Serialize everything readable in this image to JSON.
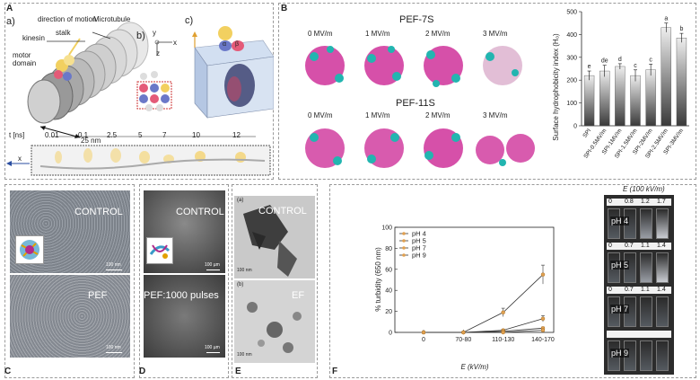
{
  "panel_labels": {
    "a_main": "A",
    "b_main": "B",
    "c_main": "C",
    "d_main": "D",
    "e_main": "E",
    "f_main": "F"
  },
  "panel_a": {
    "sub_a": "a)",
    "sub_b": "b)",
    "sub_c": "c)",
    "direction_label": "direction of motion",
    "microtubule_label": "Microtubule",
    "stalk_label": "stalk",
    "kinesin_label": "kinesin",
    "motor_label": "motor",
    "domain_label": "domain",
    "size_label": "25 nm",
    "axis_y": "y",
    "axis_x": "x",
    "axis_z": "z",
    "alpha": "α",
    "beta": "β",
    "time_axis_label": "t [ns]",
    "times": [
      "0.01",
      "0.1",
      "2.5",
      "5",
      "7",
      "10",
      "12"
    ],
    "x_arrow_label": "x"
  },
  "panel_b": {
    "title_7s": "PEF-7S",
    "title_11s": "PEF-11S",
    "fields_7s": [
      "0 MV/m",
      "1 MV/m",
      "2 MV/m",
      "3 MV/m"
    ],
    "fields_11s": [
      "0 MV/m",
      "1 MV/m",
      "2 MV/m",
      "3 MV/m"
    ]
  },
  "panel_c": {
    "top_label": "CONTROL",
    "bottom_label": "PEF",
    "scale_top": "100 nm",
    "scale_bottom": "100 nm"
  },
  "panel_d": {
    "top_label": "CONTROL",
    "bottom_label": "PEF:1000 pulses",
    "scale_top": "100 µm",
    "scale_bottom": "100 µm"
  },
  "panel_e": {
    "top_tag": "(a)",
    "bottom_tag": "(b)",
    "top_label": "CONTROL",
    "bottom_label": "EF",
    "scale_top": "100 nm",
    "scale_bottom": "100 nm"
  },
  "panel_f_photo": {
    "header": "E (100 kV/m)",
    "rows": [
      {
        "ph": "pH 4",
        "values": [
          "0",
          "0.8",
          "1.2",
          "1.7"
        ]
      },
      {
        "ph": "pH 5",
        "values": [
          "0",
          "0.7",
          "1.1",
          "1.4"
        ]
      },
      {
        "ph": "pH 7",
        "values": [
          "0",
          "0.7",
          "1.1",
          "1.4"
        ]
      },
      {
        "ph": "pH 9",
        "values": []
      }
    ]
  },
  "chart_data": [
    {
      "type": "bar",
      "title": "",
      "ylabel": "Surface hydrophobicity index (H₀)",
      "xlabel": "",
      "ylim": [
        0,
        500
      ],
      "yticks": [
        "0",
        "100",
        "200",
        "300",
        "400",
        "500"
      ],
      "categories": [
        "SPI",
        "SPI-0.5MV/m",
        "SPI-1MV/m",
        "SPI-1.5MV/m",
        "SPI-2MV/m",
        "SPI-2.5MV/m",
        "SPI-3MV/m"
      ],
      "values": [
        220,
        240,
        260,
        220,
        245,
        430,
        385
      ],
      "errors": [
        20,
        25,
        12,
        25,
        25,
        20,
        20
      ],
      "letters": [
        "e",
        "de",
        "d",
        "c",
        "c",
        "a",
        "b"
      ]
    },
    {
      "type": "line",
      "title": "",
      "ylabel": "% turbidity (650 nm)",
      "xlabel": "E (kV/m)",
      "ylim": [
        0,
        100
      ],
      "yticks": [
        "0",
        "20",
        "40",
        "60",
        "80",
        "100"
      ],
      "categories": [
        "0",
        "70-80",
        "110-130",
        "140-170"
      ],
      "legend_position": "top-left",
      "series": [
        {
          "name": "pH 4",
          "values": [
            0,
            0,
            19,
            55
          ],
          "errors": [
            0,
            0,
            4,
            9
          ]
        },
        {
          "name": "pH 5",
          "values": [
            0,
            0,
            2,
            13
          ],
          "errors": [
            0,
            0,
            1,
            3
          ]
        },
        {
          "name": "pH 7",
          "values": [
            0,
            0,
            1,
            4
          ],
          "errors": [
            0,
            0,
            1,
            1
          ]
        },
        {
          "name": "pH 9",
          "values": [
            0,
            0,
            0,
            2
          ],
          "errors": [
            0,
            0,
            0,
            1
          ]
        }
      ]
    }
  ],
  "colors": {
    "bar_gradient_dark": "#3a3a3a",
    "bar_gradient_light": "#eeeeee",
    "marker": "#e0a050",
    "protein_magenta": "#c8168c",
    "protein_cyan": "#22b5b0",
    "tubulin_red": "#e45a78",
    "tubulin_blue": "#6a78c8",
    "kinesin_yellow": "#f2d060"
  }
}
